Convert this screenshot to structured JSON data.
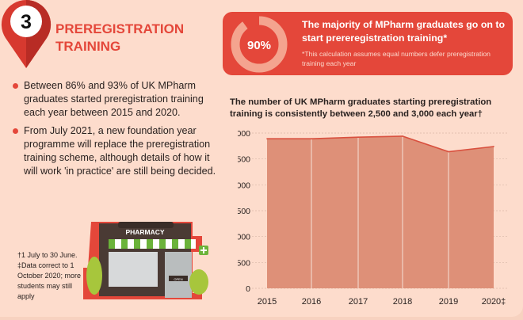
{
  "section": {
    "number": "3",
    "title_line1": "PREREGISTRATION",
    "title_line2": "TRAINING"
  },
  "bullets": [
    "Between 86% and 93% of UK MPharm graduates started preregistration training each year between 2015 and 2020.",
    "From July 2021, a new foundation year programme will replace the preregistration training scheme, although details of how it will work 'in practice' are still being decided."
  ],
  "footnotes": [
    "†1 July to 30 June.",
    "‡Data correct to 1 October 2020; more students may still apply"
  ],
  "callout": {
    "percent": "90%",
    "percent_value": 90,
    "headline": "The majority of MPharm graduates go on to start prereregistration training*",
    "note": "*This calculation assumes equal numbers defer preregistration training each year"
  },
  "pharmacy": {
    "sign": "PHARMACY",
    "door_sign": "OPEN"
  },
  "colors": {
    "accent": "#e4473a",
    "area": "#de9078",
    "line": "#d9503e",
    "bg": "#fddccc"
  },
  "chart_data": {
    "type": "area",
    "title": "The number of UK MPharm graduates starting preregistration training is consistently between 2,500 and 3,000 each year†",
    "categories": [
      "2015",
      "2016",
      "2017",
      "2018",
      "2019",
      "2020‡"
    ],
    "values": [
      2890,
      2890,
      2920,
      2940,
      2640,
      2740
    ],
    "yticks": [
      "0",
      "500",
      "1,000",
      "1,500",
      "2,000",
      "2,500",
      "3,000"
    ],
    "ytick_values": [
      0,
      500,
      1000,
      1500,
      2000,
      2500,
      3000
    ],
    "ylim": [
      0,
      3000
    ],
    "grid": true,
    "xlabel": "",
    "ylabel": ""
  }
}
